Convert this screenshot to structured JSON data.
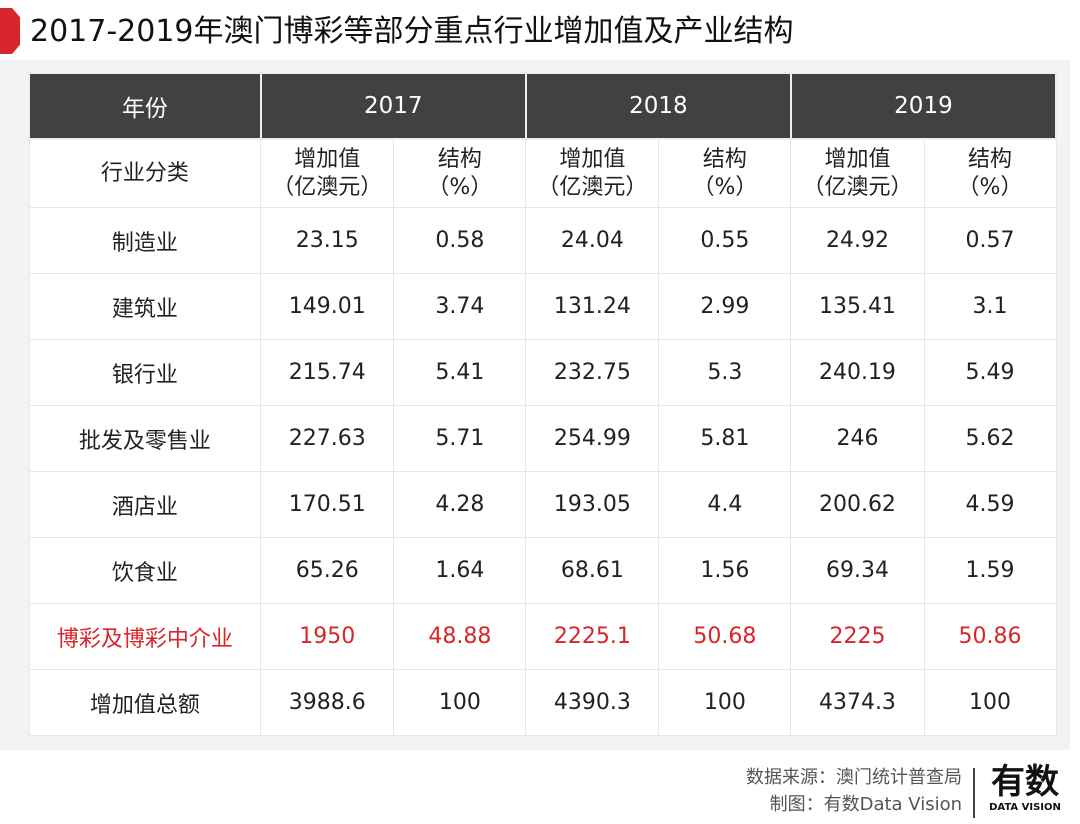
{
  "title": "2017-2019年澳门博彩等部分重点行业增加值及产业结构",
  "colors": {
    "accent": "#d7262b",
    "header_bg": "#414141"
  },
  "chart_data": {
    "type": "table",
    "header": {
      "label": "年份",
      "years": [
        "2017",
        "2018",
        "2019"
      ]
    },
    "subheader": {
      "label": "行业分类",
      "value_label": "增加值",
      "value_unit": "（亿澳元）",
      "share_label": "结构",
      "share_unit": "（%）"
    },
    "rows": [
      {
        "name": "制造业",
        "cells": [
          "23.15",
          "0.58",
          "24.04",
          "0.55",
          "24.92",
          "0.57"
        ]
      },
      {
        "name": "建筑业",
        "cells": [
          "149.01",
          "3.74",
          "131.24",
          "2.99",
          "135.41",
          "3.1"
        ]
      },
      {
        "name": "银行业",
        "cells": [
          "215.74",
          "5.41",
          "232.75",
          "5.3",
          "240.19",
          "5.49"
        ]
      },
      {
        "name": "批发及零售业",
        "cells": [
          "227.63",
          "5.71",
          "254.99",
          "5.81",
          "246",
          "5.62"
        ]
      },
      {
        "name": "酒店业",
        "cells": [
          "170.51",
          "4.28",
          "193.05",
          "4.4",
          "200.62",
          "4.59"
        ]
      },
      {
        "name": "饮食业",
        "cells": [
          "65.26",
          "1.64",
          "68.61",
          "1.56",
          "69.34",
          "1.59"
        ]
      },
      {
        "name": "博彩及博彩中介业",
        "cells": [
          "1950",
          "48.88",
          "2225.1",
          "50.68",
          "2225",
          "50.86"
        ],
        "highlight": true
      },
      {
        "name": "增加值总额",
        "cells": [
          "3988.6",
          "100",
          "4390.3",
          "100",
          "4374.3",
          "100"
        ]
      }
    ]
  },
  "footer": {
    "source": "数据来源：澳门统计普查局",
    "credit": "制图：有数Data Vision"
  },
  "logo": {
    "text": "有数",
    "subtext": "DATA VISION"
  }
}
